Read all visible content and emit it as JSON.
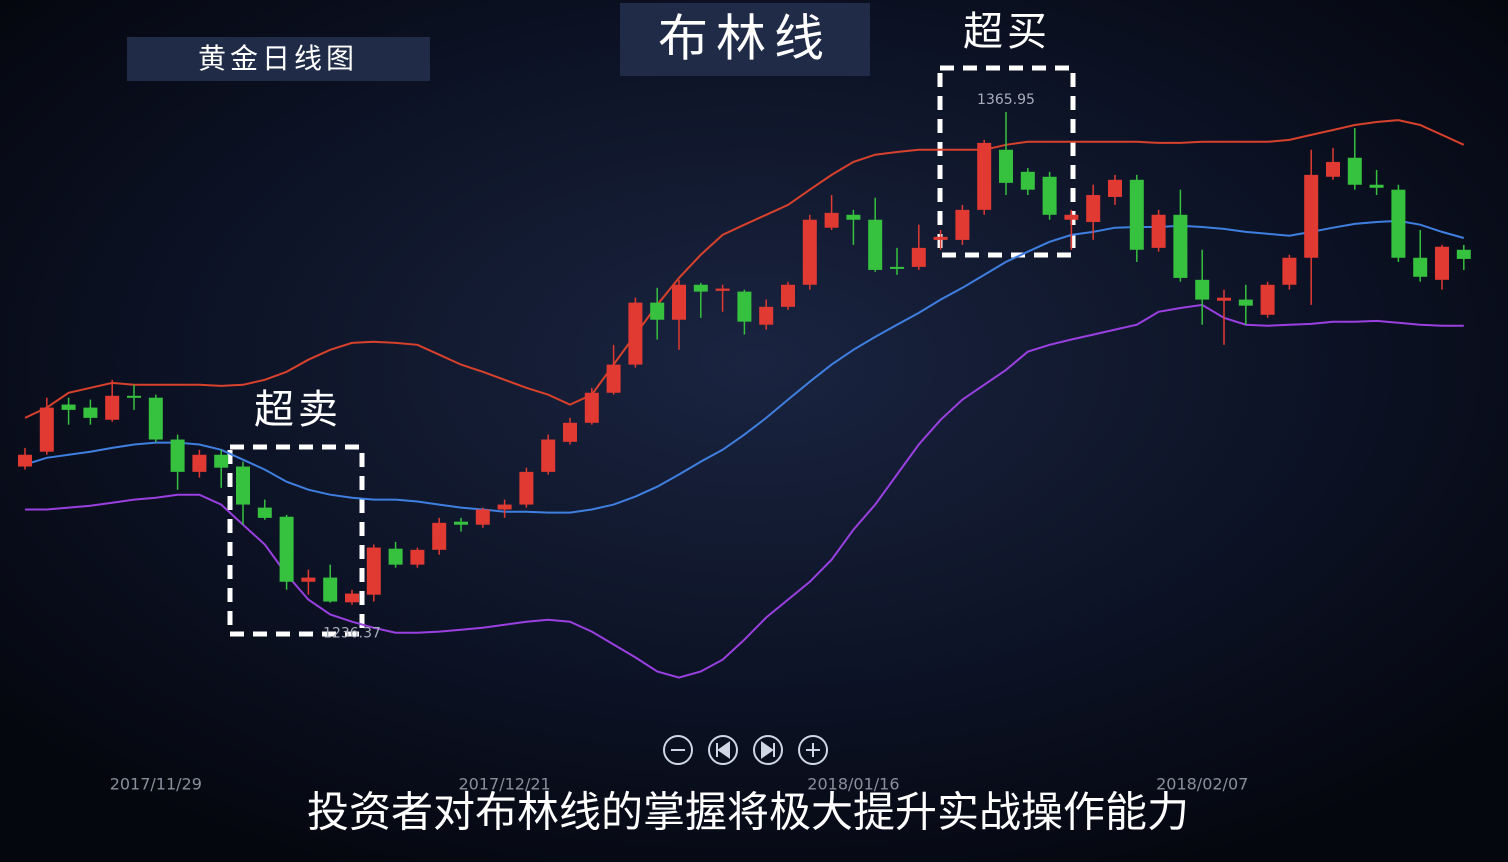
{
  "chart_data": {
    "type": "candlestick",
    "label": "黄金日线图",
    "title": "布林线",
    "annotations": [
      "超买",
      "超卖"
    ],
    "caption": "投资者对布林线的掌握将极大提升实战操作能力",
    "categories": [
      null,
      null,
      null,
      null,
      null,
      null,
      "2017/11/29",
      null,
      null,
      null,
      null,
      null,
      null,
      null,
      null,
      null,
      null,
      null,
      null,
      null,
      null,
      null,
      "2017/12/21",
      null,
      null,
      null,
      null,
      null,
      null,
      null,
      null,
      null,
      null,
      null,
      null,
      null,
      null,
      null,
      "2018/01/16",
      null,
      null,
      null,
      null,
      null,
      null,
      null,
      null,
      null,
      null,
      null,
      null,
      null,
      null,
      null,
      "2018/02/07",
      null,
      null,
      null,
      null,
      null,
      null,
      null,
      null,
      null,
      null,
      null,
      null
    ],
    "open": [
      1272.7,
      1276.6,
      1289.0,
      1288.2,
      1285.0,
      1291.3,
      1290.8,
      1279.8,
      1271.3,
      1275.8,
      1272.7,
      1261.9,
      1259.5,
      1242.4,
      1243.5,
      1237.0,
      1239.0,
      1251.1,
      1246.9,
      1250.8,
      1258.2,
      1257.4,
      1261.4,
      1262.7,
      1271.3,
      1279.2,
      1284.2,
      1292.1,
      1299.5,
      1315.8,
      1311.3,
      1320.5,
      1318.9,
      1318.7,
      1310.0,
      1314.7,
      1320.5,
      1335.5,
      1338.9,
      1337.6,
      1325.2,
      1325.2,
      1332.3,
      1332.3,
      1340.2,
      1356.0,
      1350.2,
      1348.9,
      1337.6,
      1337.0,
      1343.6,
      1348.1,
      1330.2,
      1338.9,
      1321.8,
      1316.3,
      1316.6,
      1312.6,
      1320.5,
      1327.6,
      1348.9,
      1353.9,
      1346.8,
      1345.5,
      1327.6,
      1321.8,
      1329.7
    ],
    "high": [
      1277.6,
      1290.8,
      1290.8,
      1290.3,
      1295.5,
      1294.2,
      1291.6,
      1281.1,
      1277.1,
      1277.1,
      1274.0,
      1264.0,
      1260.0,
      1245.6,
      1246.9,
      1240.3,
      1252.2,
      1252.9,
      1251.4,
      1259.2,
      1259.2,
      1261.9,
      1264.0,
      1272.4,
      1281.1,
      1285.5,
      1293.4,
      1304.7,
      1317.1,
      1319.7,
      1321.8,
      1321.0,
      1320.5,
      1319.2,
      1316.6,
      1321.3,
      1338.9,
      1344.1,
      1340.2,
      1343.4,
      1330.2,
      1336.3,
      1334.9,
      1341.5,
      1358.6,
      1365.95,
      1351.2,
      1350.2,
      1340.2,
      1346.8,
      1349.4,
      1349.4,
      1340.2,
      1345.5,
      1329.7,
      1319.2,
      1320.5,
      1321.3,
      1328.4,
      1356.0,
      1356.5,
      1361.7,
      1350.7,
      1346.8,
      1334.9,
      1331.0,
      1331.0
    ],
    "low": [
      1271.9,
      1275.8,
      1283.7,
      1283.7,
      1284.5,
      1287.6,
      1279.2,
      1266.6,
      1269.8,
      1267.1,
      1257.4,
      1258.7,
      1240.3,
      1239.0,
      1236.9,
      1236.37,
      1237.2,
      1246.1,
      1246.1,
      1249.5,
      1255.6,
      1256.6,
      1259.2,
      1261.9,
      1270.6,
      1278.5,
      1283.7,
      1291.6,
      1298.7,
      1306.1,
      1303.4,
      1311.8,
      1313.4,
      1307.4,
      1308.7,
      1313.9,
      1319.2,
      1334.9,
      1331.0,
      1323.9,
      1323.1,
      1324.4,
      1329.7,
      1331.0,
      1338.9,
      1344.1,
      1344.1,
      1337.6,
      1329.7,
      1332.3,
      1341.5,
      1326.5,
      1329.2,
      1321.3,
      1310.0,
      1304.7,
      1310.0,
      1311.8,
      1319.2,
      1315.2,
      1348.1,
      1345.5,
      1344.1,
      1326.5,
      1321.3,
      1319.2,
      1324.4
    ],
    "close": [
      1275.8,
      1288.2,
      1287.6,
      1285.5,
      1291.3,
      1290.8,
      1279.8,
      1271.3,
      1275.8,
      1272.4,
      1262.7,
      1259.2,
      1242.4,
      1243.5,
      1237.2,
      1239.3,
      1251.4,
      1246.9,
      1250.8,
      1257.9,
      1257.4,
      1261.4,
      1262.7,
      1271.3,
      1279.8,
      1284.2,
      1292.1,
      1299.5,
      1315.8,
      1311.3,
      1320.5,
      1318.7,
      1319.5,
      1310.8,
      1314.7,
      1320.5,
      1337.6,
      1339.4,
      1337.6,
      1324.4,
      1325.0,
      1330.2,
      1333.1,
      1340.2,
      1357.8,
      1347.3,
      1345.5,
      1338.9,
      1338.9,
      1344.1,
      1348.1,
      1329.7,
      1338.9,
      1322.3,
      1316.6,
      1317.1,
      1315.0,
      1320.5,
      1327.6,
      1349.4,
      1352.8,
      1346.8,
      1346.0,
      1327.6,
      1322.6,
      1330.5,
      1327.3
    ],
    "up_color": "#e03a32",
    "down_color": "#36c13f",
    "bands": [
      {
        "color": "#d8412c",
        "values": [
          1285.5,
          1288.2,
          1292.1,
          1293.4,
          1294.7,
          1294.2,
          1294.2,
          1294.2,
          1294.2,
          1293.9,
          1294.2,
          1295.5,
          1297.6,
          1300.8,
          1303.4,
          1305.2,
          1305.5,
          1305.2,
          1304.7,
          1302.1,
          1299.5,
          1297.6,
          1295.5,
          1293.4,
          1291.6,
          1289.0,
          1291.6,
          1299.5,
          1307.4,
          1315.2,
          1322.3,
          1328.4,
          1333.6,
          1336.3,
          1338.9,
          1341.5,
          1345.5,
          1349.4,
          1352.8,
          1354.7,
          1355.4,
          1356.0,
          1356.0,
          1356.0,
          1356.0,
          1357.3,
          1358.1,
          1358.1,
          1358.1,
          1358.1,
          1358.1,
          1358.1,
          1357.8,
          1357.8,
          1358.1,
          1358.1,
          1358.1,
          1358.1,
          1358.6,
          1359.9,
          1361.2,
          1362.5,
          1363.3,
          1363.8,
          1362.5,
          1359.9,
          1357.3
        ]
      },
      {
        "color": "#3f7fe0",
        "values": [
          1273.2,
          1275.0,
          1275.8,
          1276.6,
          1277.6,
          1278.5,
          1279.0,
          1279.0,
          1278.5,
          1277.1,
          1274.5,
          1271.9,
          1268.7,
          1266.6,
          1265.3,
          1264.5,
          1264.0,
          1264.0,
          1263.5,
          1262.7,
          1261.9,
          1261.4,
          1260.8,
          1260.8,
          1260.6,
          1260.6,
          1261.4,
          1262.7,
          1264.8,
          1267.4,
          1270.6,
          1274.0,
          1277.1,
          1281.1,
          1285.5,
          1290.3,
          1295.0,
          1299.5,
          1303.4,
          1306.8,
          1310.0,
          1313.1,
          1316.6,
          1319.7,
          1323.1,
          1326.5,
          1329.2,
          1331.8,
          1333.6,
          1334.4,
          1335.5,
          1335.7,
          1335.7,
          1336.0,
          1335.7,
          1335.2,
          1334.4,
          1333.9,
          1333.4,
          1334.4,
          1335.5,
          1336.5,
          1337.0,
          1337.3,
          1336.3,
          1334.4,
          1332.8
        ]
      },
      {
        "color": "#9a40e0",
        "values": [
          1261.4,
          1261.4,
          1261.9,
          1262.4,
          1263.2,
          1264.0,
          1264.5,
          1265.3,
          1265.3,
          1262.7,
          1257.4,
          1252.2,
          1244.3,
          1237.7,
          1233.8,
          1231.9,
          1230.3,
          1229.0,
          1229.0,
          1229.3,
          1229.8,
          1230.3,
          1231.1,
          1231.9,
          1232.4,
          1231.9,
          1229.3,
          1225.9,
          1222.5,
          1218.8,
          1217.2,
          1218.8,
          1221.9,
          1227.2,
          1233.0,
          1237.7,
          1242.4,
          1248.2,
          1256.1,
          1262.7,
          1270.6,
          1278.5,
          1285.0,
          1290.3,
          1294.2,
          1298.1,
          1302.9,
          1304.7,
          1306.1,
          1307.4,
          1308.7,
          1310.0,
          1313.4,
          1314.4,
          1315.2,
          1311.8,
          1310.0,
          1309.7,
          1310.0,
          1310.2,
          1310.8,
          1310.8,
          1311.0,
          1310.5,
          1310.0,
          1309.7,
          1309.7
        ]
      }
    ],
    "ylim": [
      1200,
      1380
    ]
  }
}
